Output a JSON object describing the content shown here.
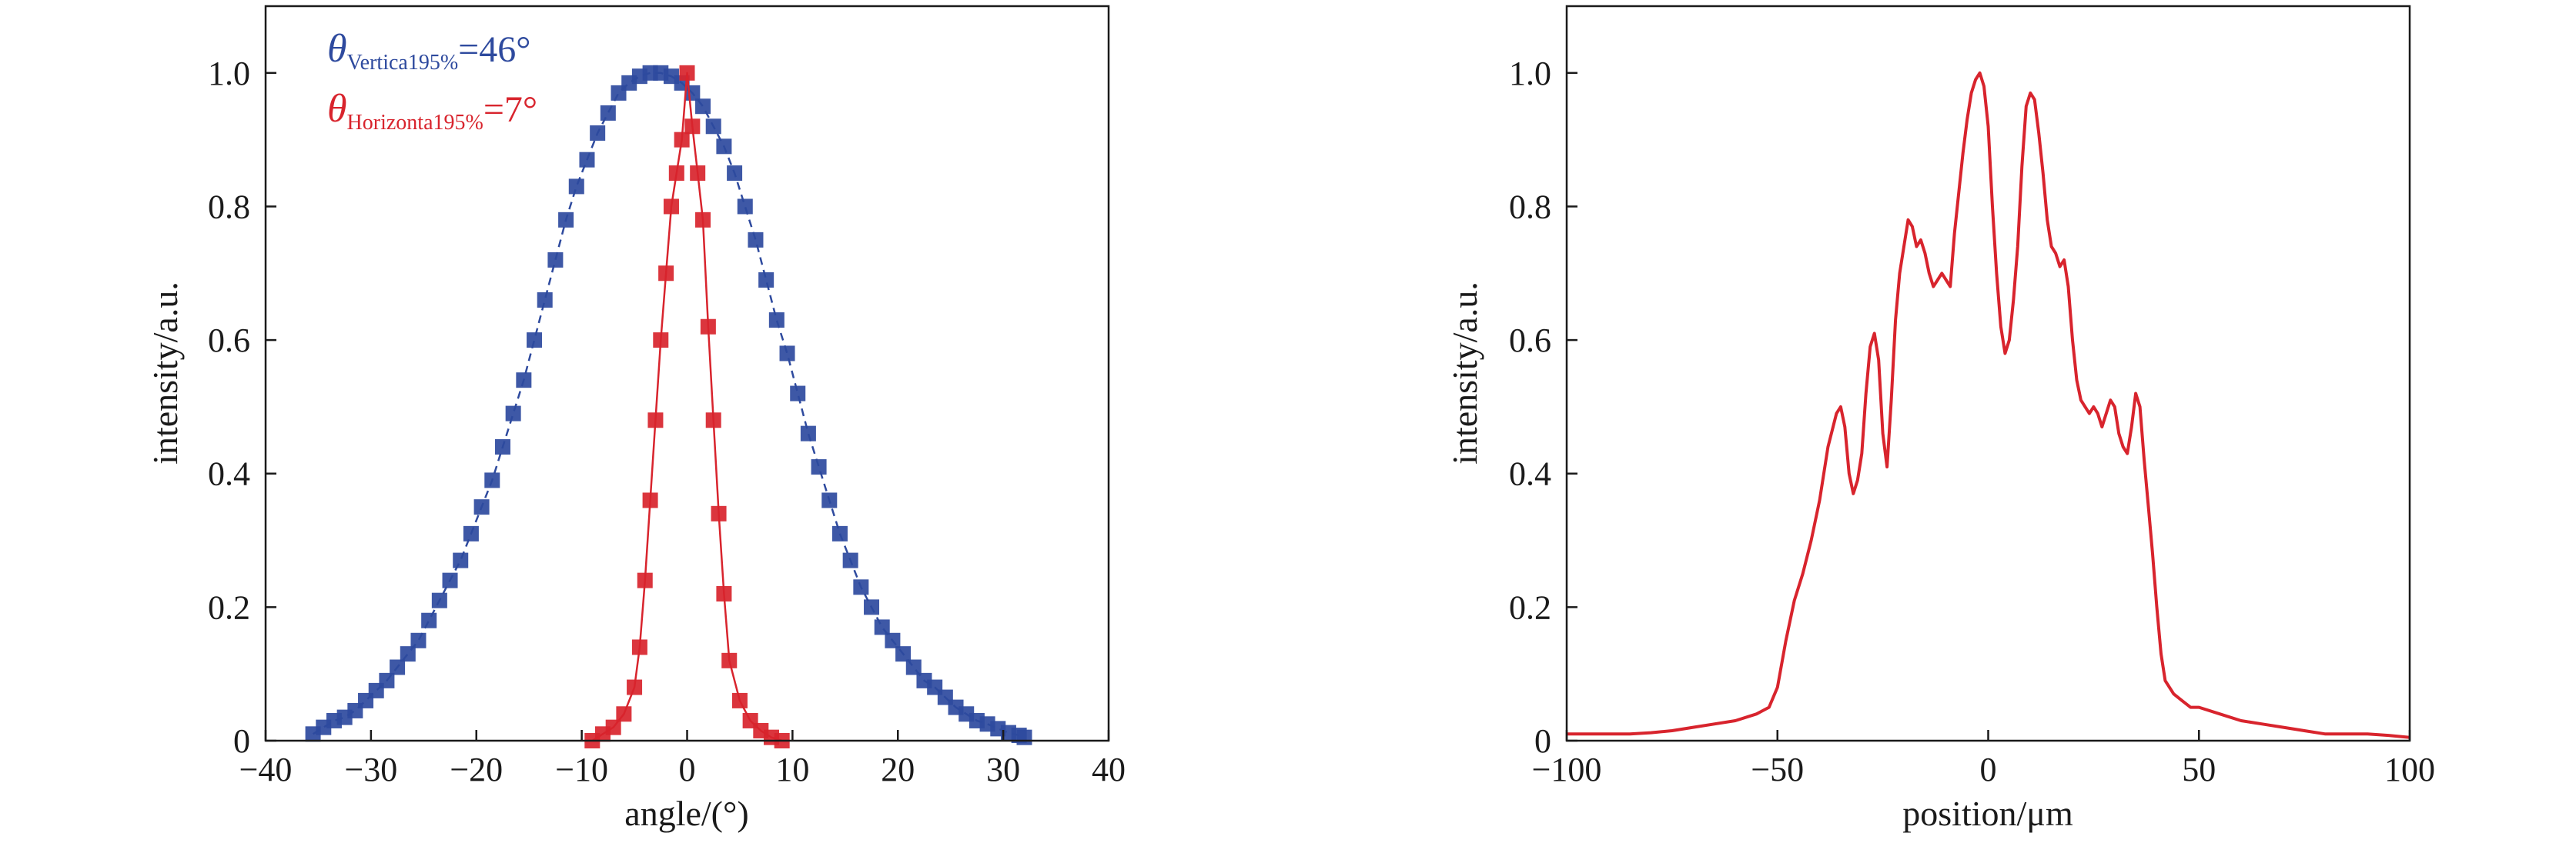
{
  "colors": {
    "blue": "#2e4a9e",
    "red": "#d8242d",
    "axis": "#1a1a1a"
  },
  "chart_data": [
    {
      "type": "scatter",
      "xlabel": "angle/(°)",
      "ylabel": "intensity/a.u.",
      "xlim": [
        -40,
        40
      ],
      "ylim": [
        0,
        1.1
      ],
      "xticks": [
        -40,
        -30,
        -20,
        -10,
        0,
        10,
        20,
        30,
        40
      ],
      "xtick_labels": [
        "−40",
        "−30",
        "−20",
        "−10",
        "0",
        "10",
        "20",
        "30",
        "40"
      ],
      "yticks": [
        0,
        0.2,
        0.4,
        0.6,
        0.8,
        1.0
      ],
      "ytick_labels": [
        "0",
        "0.2",
        "0.4",
        "0.6",
        "0.8",
        "1.0"
      ],
      "annotations": [
        {
          "symbol": "θ",
          "subscript": "Vertica195%",
          "value": "=46°",
          "color": "#2e4a9e"
        },
        {
          "symbol": "θ",
          "subscript": "Horizonta195%",
          "value": "=7°",
          "color": "#d8242d"
        }
      ],
      "series": [
        {
          "color": "#2e4a9e",
          "marker": "square",
          "line": "dashed",
          "x": [
            -35.5,
            -34.5,
            -33.5,
            -32.5,
            -31.5,
            -30.5,
            -29.5,
            -28.5,
            -27.5,
            -26.5,
            -25.5,
            -24.5,
            -23.5,
            -22.5,
            -21.5,
            -20.5,
            -19.5,
            -18.5,
            -17.5,
            -16.5,
            -15.5,
            -14.5,
            -13.5,
            -12.5,
            -11.5,
            -10.5,
            -9.5,
            -8.5,
            -7.5,
            -6.5,
            -5.5,
            -4.5,
            -3.5,
            -2.5,
            -1.5,
            -0.5,
            0.5,
            1.5,
            2.5,
            3.5,
            4.5,
            5.5,
            6.5,
            7.5,
            8.5,
            9.5,
            10.5,
            11.5,
            12.5,
            13.5,
            14.5,
            15.5,
            16.5,
            17.5,
            18.5,
            19.5,
            20.5,
            21.5,
            22.5,
            23.5,
            24.5,
            25.5,
            26.5,
            27.5,
            28.5,
            29.5,
            30.5,
            31.5,
            32.0
          ],
          "y": [
            0.01,
            0.02,
            0.03,
            0.035,
            0.045,
            0.06,
            0.075,
            0.09,
            0.11,
            0.13,
            0.15,
            0.18,
            0.21,
            0.24,
            0.27,
            0.31,
            0.35,
            0.39,
            0.44,
            0.49,
            0.54,
            0.6,
            0.66,
            0.72,
            0.78,
            0.83,
            0.87,
            0.91,
            0.94,
            0.97,
            0.985,
            0.995,
            1.0,
            1.0,
            0.995,
            0.985,
            0.97,
            0.95,
            0.92,
            0.89,
            0.85,
            0.8,
            0.75,
            0.69,
            0.63,
            0.58,
            0.52,
            0.46,
            0.41,
            0.36,
            0.31,
            0.27,
            0.23,
            0.2,
            0.17,
            0.15,
            0.13,
            0.11,
            0.09,
            0.08,
            0.065,
            0.05,
            0.04,
            0.03,
            0.025,
            0.018,
            0.012,
            0.008,
            0.005
          ]
        },
        {
          "color": "#d8242d",
          "marker": "square",
          "line": "solid",
          "x": [
            -9.0,
            -8.0,
            -7.0,
            -6.0,
            -5.0,
            -4.5,
            -4.0,
            -3.5,
            -3.0,
            -2.5,
            -2.0,
            -1.5,
            -1.0,
            -0.5,
            0.0,
            0.5,
            1.0,
            1.5,
            2.0,
            2.5,
            3.0,
            3.5,
            4.0,
            5.0,
            6.0,
            7.0,
            8.0,
            9.0
          ],
          "y": [
            0.0,
            0.01,
            0.02,
            0.04,
            0.08,
            0.14,
            0.24,
            0.36,
            0.48,
            0.6,
            0.7,
            0.8,
            0.85,
            0.9,
            1.0,
            0.92,
            0.85,
            0.78,
            0.62,
            0.48,
            0.34,
            0.22,
            0.12,
            0.06,
            0.03,
            0.015,
            0.005,
            0.0
          ]
        }
      ]
    },
    {
      "type": "line",
      "xlabel": "position/μm",
      "ylabel": "intensity/a.u.",
      "xlim": [
        -100,
        100
      ],
      "ylim": [
        0,
        1.1
      ],
      "xticks": [
        -100,
        -50,
        0,
        50,
        100
      ],
      "xtick_labels": [
        "−100",
        "−50",
        "0",
        "50",
        "100"
      ],
      "yticks": [
        0,
        0.2,
        0.4,
        0.6,
        0.8,
        1.0
      ],
      "ytick_labels": [
        "0",
        "0.2",
        "0.4",
        "0.6",
        "0.8",
        "1.0"
      ],
      "series": [
        {
          "color": "#d8242d",
          "x": [
            -100,
            -95,
            -90,
            -85,
            -80,
            -75,
            -70,
            -65,
            -60,
            -55,
            -52,
            -50,
            -48,
            -46,
            -44,
            -42,
            -40,
            -38,
            -36,
            -35,
            -34,
            -33,
            -32,
            -31,
            -30,
            -29,
            -28,
            -27,
            -26,
            -25,
            -24,
            -23,
            -22,
            -21,
            -20,
            -19,
            -18,
            -17,
            -16,
            -15,
            -14,
            -13,
            -12,
            -11,
            -10,
            -9,
            -8,
            -7,
            -6,
            -5,
            -4,
            -3,
            -2,
            -1,
            0,
            1,
            2,
            3,
            4,
            5,
            6,
            7,
            8,
            9,
            10,
            11,
            12,
            13,
            14,
            15,
            16,
            17,
            18,
            19,
            20,
            21,
            22,
            23,
            24,
            25,
            26,
            27,
            28,
            29,
            30,
            31,
            32,
            33,
            34,
            35,
            36,
            37,
            38,
            39,
            40,
            41,
            42,
            44,
            46,
            48,
            50,
            55,
            60,
            65,
            70,
            75,
            80,
            85,
            90,
            95,
            100
          ],
          "y": [
            0.01,
            0.01,
            0.01,
            0.01,
            0.012,
            0.015,
            0.02,
            0.025,
            0.03,
            0.04,
            0.05,
            0.08,
            0.15,
            0.21,
            0.25,
            0.3,
            0.36,
            0.44,
            0.49,
            0.5,
            0.47,
            0.4,
            0.37,
            0.39,
            0.43,
            0.52,
            0.59,
            0.61,
            0.57,
            0.46,
            0.41,
            0.51,
            0.63,
            0.7,
            0.74,
            0.78,
            0.77,
            0.74,
            0.75,
            0.73,
            0.7,
            0.68,
            0.69,
            0.7,
            0.69,
            0.68,
            0.76,
            0.82,
            0.88,
            0.93,
            0.97,
            0.99,
            1.0,
            0.98,
            0.92,
            0.8,
            0.7,
            0.62,
            0.58,
            0.6,
            0.66,
            0.74,
            0.86,
            0.95,
            0.97,
            0.96,
            0.91,
            0.85,
            0.78,
            0.74,
            0.73,
            0.71,
            0.72,
            0.68,
            0.6,
            0.54,
            0.51,
            0.5,
            0.49,
            0.5,
            0.49,
            0.47,
            0.49,
            0.51,
            0.5,
            0.46,
            0.44,
            0.43,
            0.47,
            0.52,
            0.5,
            0.42,
            0.35,
            0.28,
            0.2,
            0.13,
            0.09,
            0.07,
            0.06,
            0.05,
            0.05,
            0.04,
            0.03,
            0.025,
            0.02,
            0.015,
            0.01,
            0.01,
            0.01,
            0.008,
            0.005
          ]
        }
      ]
    }
  ]
}
